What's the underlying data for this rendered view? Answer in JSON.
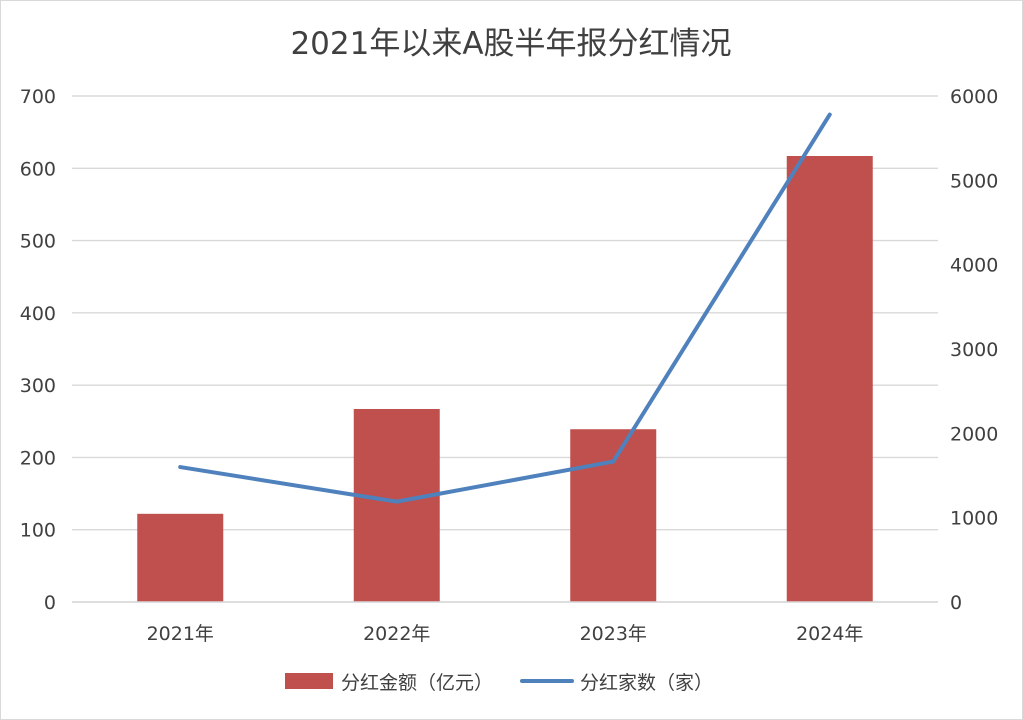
{
  "chart_data": {
    "type": "bar",
    "title": "2021年以来A股半年报分红情况",
    "categories": [
      "2021年",
      "2022年",
      "2023年",
      "2024年"
    ],
    "series": [
      {
        "name": "分红金额（亿元）",
        "type": "bar",
        "axis": "left",
        "values": [
          122,
          267,
          239,
          617
        ]
      },
      {
        "name": "分红家数（家）",
        "type": "line",
        "axis": "right",
        "values": [
          1600,
          1190,
          1665,
          5780
        ]
      }
    ],
    "ylim": [
      0,
      700
    ],
    "y_ticks": [
      "0",
      "100",
      "200",
      "300",
      "400",
      "500",
      "600",
      "700"
    ],
    "y2lim": [
      0,
      6000
    ],
    "y2_ticks": [
      "0",
      "1000",
      "2000",
      "3000",
      "4000",
      "5000",
      "6000"
    ],
    "grid": true,
    "legend_position": "bottom",
    "colors": {
      "bar": "#c0504d",
      "line": "#4f81bd",
      "grid": "#d9d9d9",
      "text": "#404040"
    }
  }
}
